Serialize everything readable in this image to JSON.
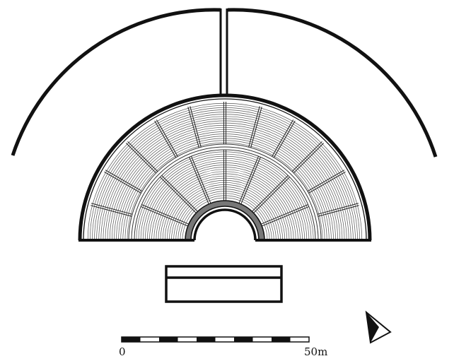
{
  "scale_bar": {
    "start_label": "0",
    "end_label": "50m"
  },
  "colors": {
    "ink": "#111111",
    "paper": "#ffffff",
    "hatch": "#555555"
  },
  "icons": {
    "north_arrow": "north-arrow-icon"
  }
}
